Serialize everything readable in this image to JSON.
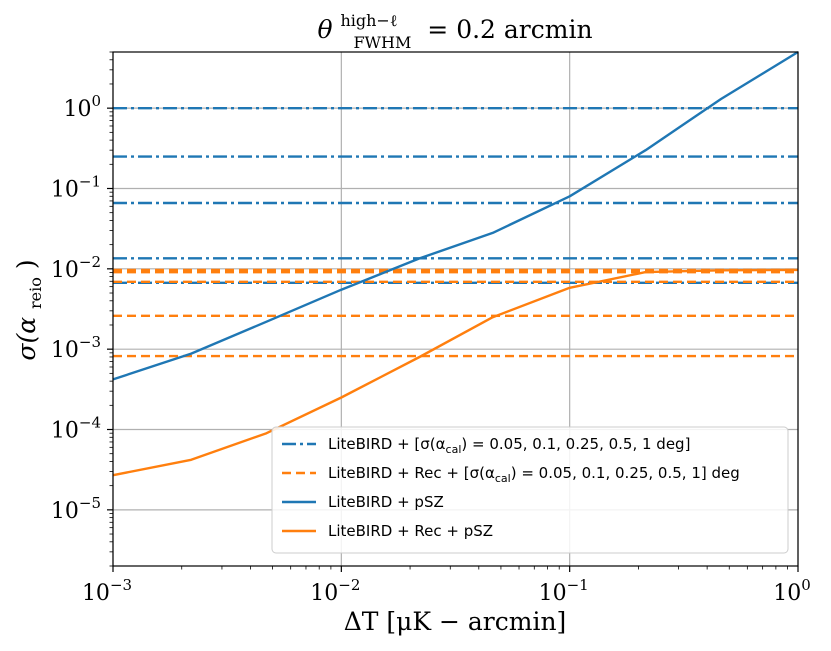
{
  "chart_data": {
    "type": "line",
    "title": {
      "symbol": "θ",
      "superscript": "high−ℓ",
      "subscript": "FWHM",
      "equals": "= 0.2 arcmin"
    },
    "xlabel": "ΔT [μK − arcmin]",
    "ylabel": {
      "sigma": "σ(α",
      "sub": "reio",
      "close": ")"
    },
    "x_scale": "log",
    "y_scale": "log",
    "xlim": [
      0.001,
      1
    ],
    "ylim": [
      2e-06,
      5
    ],
    "grid": true,
    "x_ticks": [
      {
        "value": 0.001,
        "base": "10",
        "exp": "−3"
      },
      {
        "value": 0.01,
        "base": "10",
        "exp": "−2"
      },
      {
        "value": 0.1,
        "base": "10",
        "exp": "−1"
      },
      {
        "value": 1,
        "base": "10",
        "exp": "0"
      }
    ],
    "y_ticks": [
      {
        "value": 1e-05,
        "base": "10",
        "exp": "−5"
      },
      {
        "value": 0.0001,
        "base": "10",
        "exp": "−4"
      },
      {
        "value": 0.001,
        "base": "10",
        "exp": "−3"
      },
      {
        "value": 0.01,
        "base": "10",
        "exp": "−2"
      },
      {
        "value": 0.1,
        "base": "10",
        "exp": "−1"
      },
      {
        "value": 1,
        "base": "10",
        "exp": "0"
      }
    ],
    "colors": {
      "blue": "#1f77b4",
      "orange": "#ff7f0e",
      "grid": "#b0b0b0"
    },
    "hlines": [
      {
        "group": "litebird-cal",
        "alpha_cal_deg": 0.05,
        "y": 0.0067,
        "color": "#1f77b4",
        "style": "dashdot"
      },
      {
        "group": "litebird-cal",
        "alpha_cal_deg": 0.1,
        "y": 0.0135,
        "color": "#1f77b4",
        "style": "dashdot"
      },
      {
        "group": "litebird-cal",
        "alpha_cal_deg": 0.25,
        "y": 0.066,
        "color": "#1f77b4",
        "style": "dashdot"
      },
      {
        "group": "litebird-cal",
        "alpha_cal_deg": 0.5,
        "y": 0.25,
        "color": "#1f77b4",
        "style": "dashdot"
      },
      {
        "group": "litebird-cal",
        "alpha_cal_deg": 1,
        "y": 1.0,
        "color": "#1f77b4",
        "style": "dashdot"
      },
      {
        "group": "litebird-rec-cal",
        "alpha_cal_deg": 0.05,
        "y": 0.00082,
        "color": "#ff7f0e",
        "style": "dashed"
      },
      {
        "group": "litebird-rec-cal",
        "alpha_cal_deg": 0.1,
        "y": 0.0026,
        "color": "#ff7f0e",
        "style": "dashed"
      },
      {
        "group": "litebird-rec-cal",
        "alpha_cal_deg": 0.25,
        "y": 0.0069,
        "color": "#ff7f0e",
        "style": "dashed"
      },
      {
        "group": "litebird-rec-cal",
        "alpha_cal_deg": 0.5,
        "y": 0.0091,
        "color": "#ff7f0e",
        "style": "dashed"
      },
      {
        "group": "litebird-rec-cal",
        "alpha_cal_deg": 1,
        "y": 0.0097,
        "color": "#ff7f0e",
        "style": "dashed"
      }
    ],
    "series": [
      {
        "name": "LiteBIRD + pSZ",
        "color": "#1f77b4",
        "x": [
          0.001,
          0.0022,
          0.0047,
          0.01,
          0.022,
          0.046,
          0.1,
          0.215,
          0.46,
          1.0
        ],
        "y": [
          0.00042,
          0.00088,
          0.0022,
          0.0055,
          0.0135,
          0.028,
          0.08,
          0.3,
          1.3,
          5.0
        ]
      },
      {
        "name": "LiteBIRD + Rec + pSZ",
        "color": "#ff7f0e",
        "x": [
          0.001,
          0.0022,
          0.0047,
          0.01,
          0.022,
          0.046,
          0.1,
          0.215,
          0.46,
          1.0
        ],
        "y": [
          2.7e-05,
          4.2e-05,
          9e-05,
          0.00025,
          0.0008,
          0.0025,
          0.0058,
          0.0091,
          0.0096,
          0.0097
        ]
      }
    ],
    "legend": {
      "location": "lower-right",
      "entries": [
        {
          "style": "dashdot",
          "color": "#1f77b4",
          "prefix": "LiteBIRD + [σ(α",
          "sub": "cal",
          "suffix": ") = 0.05, 0.1, 0.25, 0.5, 1 deg]"
        },
        {
          "style": "dashed",
          "color": "#ff7f0e",
          "prefix": "LiteBIRD + Rec + [σ(α",
          "sub": "cal",
          "suffix": ") = 0.05, 0.1, 0.25, 0.5, 1] deg"
        },
        {
          "style": "solid",
          "color": "#1f77b4",
          "prefix": "LiteBIRD + pSZ",
          "sub": "",
          "suffix": ""
        },
        {
          "style": "solid",
          "color": "#ff7f0e",
          "prefix": "LiteBIRD + Rec + pSZ",
          "sub": "",
          "suffix": ""
        }
      ]
    }
  }
}
